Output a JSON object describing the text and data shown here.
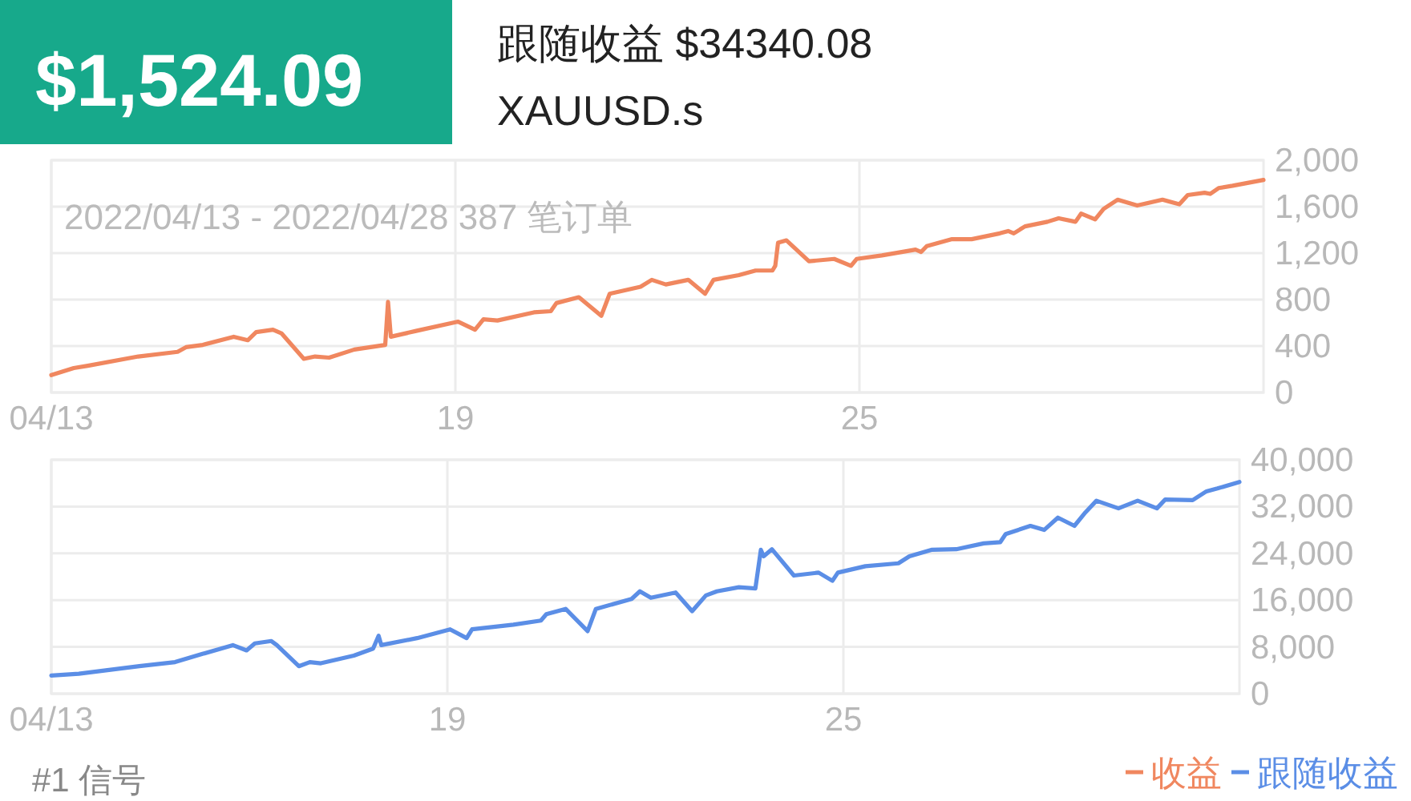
{
  "chart_data": [
    {
      "type": "line",
      "title": "$1,524.09",
      "subtitle": "跟随收益 $34340.08",
      "annotations": [
        "XAUUSD.s",
        "2022/04/13 - 2022/04/28 387 笔订单"
      ],
      "x": [
        "2022-04-13T00:00",
        "2022-04-13T08:00",
        "2022-04-13T13:00",
        "2022-04-14T07:00",
        "2022-04-14T21:00",
        "2022-04-15T00:00",
        "2022-04-15T06:00",
        "2022-04-15T17:00",
        "2022-04-15T22:00",
        "2022-04-16T01:00",
        "2022-04-16T07:00",
        "2022-04-16T10:00",
        "2022-04-16T18:00",
        "2022-04-16T22:00",
        "2022-04-17T03:00",
        "2022-04-17T12:00",
        "2022-04-17T23:00",
        "2022-04-18T00:00",
        "2022-04-18T01:00",
        "2022-04-18T10:00",
        "2022-04-19T01:00",
        "2022-04-19T07:00",
        "2022-04-19T10:00",
        "2022-04-19T15:00",
        "2022-04-20T04:00",
        "2022-04-20T10:00",
        "2022-04-20T12:00",
        "2022-04-20T20:00",
        "2022-04-21T04:00",
        "2022-04-21T07:00",
        "2022-04-21T18:00",
        "2022-04-21T22:00",
        "2022-04-22T03:00",
        "2022-04-22T11:00",
        "2022-04-22T17:00",
        "2022-04-22T20:00",
        "2022-04-23T05:00",
        "2022-04-23T11:00",
        "2022-04-23T17:00",
        "2022-04-23T18:00",
        "2022-04-23T19:00",
        "2022-04-23T22:00",
        "2022-04-24T06:00",
        "2022-04-24T15:00",
        "2022-04-24T21:00",
        "2022-04-24T23:00",
        "2022-04-25T08:00",
        "2022-04-25T20:00",
        "2022-04-25T22:00",
        "2022-04-26T00:00",
        "2022-04-26T09:00",
        "2022-04-26T16:00",
        "2022-04-27T02:00",
        "2022-04-27T05:00",
        "2022-04-27T07:00",
        "2022-04-27T11:00",
        "2022-04-27T19:00",
        "2022-04-27T23:00",
        "2022-04-28T05:00",
        "2022-04-28T07:00",
        "2022-04-28T12:00",
        "2022-04-28T15:00",
        "2022-04-28T20:00",
        "2022-04-29T03:00",
        "2022-04-29T12:00",
        "2022-04-29T18:00",
        "2022-04-29T21:00",
        "2022-04-30T03:00",
        "2022-04-30T05:00",
        "2022-04-30T08:00",
        "2022-04-30T13:00",
        "2022-05-01T00:00"
      ],
      "series": [
        {
          "name": "收益",
          "color": "#f0875f",
          "values": [
            150,
            210,
            230,
            310,
            350,
            390,
            410,
            480,
            450,
            520,
            540,
            510,
            290,
            310,
            300,
            370,
            410,
            780,
            480,
            530,
            610,
            540,
            630,
            620,
            690,
            700,
            770,
            820,
            660,
            850,
            910,
            970,
            930,
            970,
            850,
            970,
            1010,
            1050,
            1050,
            1090,
            1290,
            1310,
            1130,
            1150,
            1090,
            1150,
            1180,
            1230,
            1210,
            1260,
            1320,
            1320,
            1370,
            1390,
            1370,
            1430,
            1470,
            1500,
            1470,
            1540,
            1490,
            1580,
            1660,
            1610,
            1660,
            1620,
            1700,
            1720,
            1710,
            1760,
            1780,
            1830
          ]
        }
      ],
      "xlim": [
        "2022-04-13",
        "2022-05-01"
      ],
      "xticks": [
        {
          "value": "2022-04-13",
          "label": "04/13"
        },
        {
          "value": "2022-04-19",
          "label": "19"
        },
        {
          "value": "2022-04-25",
          "label": "25"
        }
      ],
      "ylim": [
        0,
        2000
      ],
      "yticks": [
        0,
        400,
        800,
        {
          "value": 1200,
          "label": "1,200"
        },
        {
          "value": 1600,
          "label": "1,600"
        },
        {
          "value": 2000,
          "label": "2,000"
        }
      ],
      "grid": true,
      "legend": "bottom right"
    },
    {
      "type": "line",
      "annotations": [
        "#1 信号"
      ],
      "x": [
        "2022-04-13T00:00",
        "2022-04-13T10:00",
        "2022-04-14T08:00",
        "2022-04-14T21:00",
        "2022-04-15T07:00",
        "2022-04-15T18:00",
        "2022-04-15T23:00",
        "2022-04-16T02:00",
        "2022-04-16T08:00",
        "2022-04-16T10:00",
        "2022-04-16T18:00",
        "2022-04-16T22:00",
        "2022-04-17T02:00",
        "2022-04-17T14:00",
        "2022-04-17T21:00",
        "2022-04-17T23:00",
        "2022-04-18T00:00",
        "2022-04-18T13:00",
        "2022-04-19T01:00",
        "2022-04-19T07:00",
        "2022-04-19T09:00",
        "2022-04-20T00:00",
        "2022-04-20T10:00",
        "2022-04-20T12:00",
        "2022-04-20T19:00",
        "2022-04-21T03:00",
        "2022-04-21T06:00",
        "2022-04-21T19:00",
        "2022-04-21T22:00",
        "2022-04-22T02:00",
        "2022-04-22T11:00",
        "2022-04-22T17:00",
        "2022-04-22T22:00",
        "2022-04-23T02:00",
        "2022-04-23T10:00",
        "2022-04-23T16:00",
        "2022-04-23T18:00",
        "2022-04-23T19:00",
        "2022-04-23T22:00",
        "2022-04-24T06:00",
        "2022-04-24T15:00",
        "2022-04-24T20:00",
        "2022-04-24T22:00",
        "2022-04-25T08:00",
        "2022-04-25T20:00",
        "2022-04-26T00:00",
        "2022-04-26T08:00",
        "2022-04-26T17:00",
        "2022-04-27T03:00",
        "2022-04-27T09:00",
        "2022-04-27T11:00",
        "2022-04-27T20:00",
        "2022-04-28T01:00",
        "2022-04-28T06:00",
        "2022-04-28T12:00",
        "2022-04-28T16:00",
        "2022-04-28T20:00",
        "2022-04-29T04:00",
        "2022-04-29T11:00",
        "2022-04-29T18:00",
        "2022-04-29T21:00",
        "2022-04-30T07:00",
        "2022-04-30T12:00",
        "2022-04-30T16:00",
        "2022-05-01T00:00"
      ],
      "series": [
        {
          "name": "跟随收益",
          "color": "#5b8ee6",
          "values": [
            3100,
            3400,
            4700,
            5400,
            6800,
            8300,
            7400,
            8600,
            9000,
            8300,
            4700,
            5400,
            5200,
            6500,
            7700,
            9900,
            8300,
            9500,
            11000,
            9500,
            11000,
            11800,
            12500,
            13600,
            14500,
            10700,
            14500,
            16200,
            17500,
            16400,
            17300,
            14100,
            16800,
            17500,
            18200,
            18000,
            24600,
            23500,
            24700,
            20200,
            20700,
            19300,
            20700,
            21800,
            22300,
            23500,
            24600,
            24700,
            25700,
            25900,
            27300,
            28700,
            28000,
            30100,
            28700,
            31000,
            33000,
            31700,
            33000,
            31700,
            33200,
            33100,
            34600,
            35100,
            36200
          ]
        }
      ],
      "xlim": [
        "2022-04-13",
        "2022-05-01"
      ],
      "xticks": [
        {
          "value": "2022-04-13",
          "label": "04/13"
        },
        {
          "value": "2022-04-19",
          "label": "19"
        },
        {
          "value": "2022-04-25",
          "label": "25"
        }
      ],
      "ylim": [
        0,
        40000
      ],
      "yticks": [
        0,
        {
          "value": 8000,
          "label": "8,000"
        },
        {
          "value": 16000,
          "label": "16,000"
        },
        {
          "value": 24000,
          "label": "24,000"
        },
        {
          "value": 32000,
          "label": "32,000"
        },
        {
          "value": 40000,
          "label": "40,000"
        }
      ],
      "grid": true,
      "legend": "bottom right"
    }
  ]
}
